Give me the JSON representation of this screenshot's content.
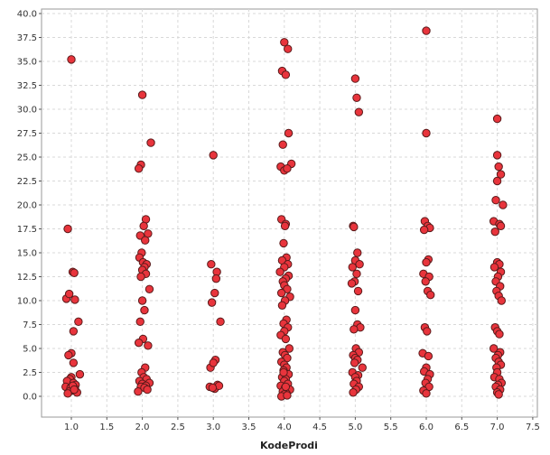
{
  "chart_data": {
    "type": "scatter",
    "xlabel": "KodeProdi",
    "ylabel": "",
    "xlim": [
      0.6,
      7.5
    ],
    "ylim": [
      -2.0,
      40.0
    ],
    "x_ticks": [
      1.0,
      1.5,
      2.0,
      2.5,
      3.0,
      3.5,
      4.0,
      4.5,
      5.0,
      5.5,
      6.0,
      6.5,
      7.0,
      7.5
    ],
    "y_ticks": [
      0.0,
      2.5,
      5.0,
      7.5,
      10.0,
      12.5,
      15.0,
      17.5,
      20.0,
      22.5,
      25.0,
      27.5,
      30.0,
      32.5,
      35.0,
      37.5,
      40.0
    ],
    "grid": true,
    "marker_color": "#e8343c",
    "marker_edge": "#5a1a1a",
    "series": [
      {
        "x": [
          1.0,
          0.95,
          1.02,
          1.04,
          0.93,
          0.97,
          1.05,
          1.1,
          1.03,
          1.0,
          0.96,
          1.12,
          1.0,
          0.98,
          0.94,
          1.03,
          1.06,
          0.92,
          0.99,
          1.05,
          1.01,
          0.97,
          1.08,
          1.03,
          0.95,
          1.02,
          1.04
        ],
        "y": [
          35.2,
          17.5,
          13.0,
          12.9,
          10.2,
          10.7,
          10.1,
          7.8,
          6.8,
          4.5,
          4.3,
          2.3,
          2.0,
          1.8,
          1.6,
          1.4,
          1.2,
          1.0,
          0.9,
          0.8,
          0.6,
          0.5,
          0.4,
          3.5,
          0.3,
          1.1,
          0.7
        ]
      },
      {
        "x": [
          2.12,
          2.0,
          1.98,
          1.95,
          2.05,
          2.02,
          2.08,
          1.97,
          2.04,
          1.99,
          1.96,
          2.01,
          2.06,
          2.03,
          2.0,
          2.05,
          1.98,
          2.1,
          2.0,
          2.03,
          1.97,
          2.01,
          1.95,
          2.08,
          2.04,
          1.99,
          2.02,
          2.06,
          1.96,
          2.1,
          2.0,
          2.05,
          1.98,
          2.03,
          2.07,
          1.94
        ],
        "y": [
          26.5,
          31.5,
          24.2,
          23.8,
          18.5,
          17.8,
          17.0,
          16.8,
          16.3,
          15.0,
          14.5,
          14.0,
          13.8,
          13.5,
          13.2,
          12.8,
          12.5,
          11.2,
          10.0,
          9.0,
          7.8,
          6.0,
          5.6,
          5.3,
          3.0,
          2.5,
          2.0,
          1.8,
          1.6,
          1.4,
          1.3,
          1.1,
          1.0,
          0.9,
          0.7,
          0.5
        ]
      },
      {
        "x": [
          3.0,
          2.97,
          3.05,
          3.04,
          3.02,
          2.98,
          3.1,
          2.96,
          3.03,
          3.0,
          2.95,
          3.06,
          3.02,
          3.08,
          2.99
        ],
        "y": [
          25.2,
          13.8,
          13.0,
          12.3,
          10.8,
          9.8,
          7.8,
          3.0,
          3.8,
          3.5,
          1.0,
          1.2,
          0.8,
          1.1,
          0.9
        ]
      },
      {
        "x": [
          4.0,
          4.05,
          3.97,
          4.02,
          4.1,
          3.95,
          4.0,
          4.04,
          3.98,
          4.06,
          3.96,
          4.02,
          4.01,
          3.99,
          4.03,
          3.97,
          4.05,
          4.0,
          3.94,
          4.06,
          4.02,
          3.98,
          4.0,
          4.04,
          3.96,
          4.08,
          4.01,
          3.97,
          4.03,
          3.99,
          4.05,
          4.0,
          3.95,
          4.02,
          4.07,
          3.98,
          4.01,
          4.04,
          3.96,
          4.0,
          4.03,
          3.99,
          4.06,
          3.97,
          4.02,
          4.0,
          4.05,
          3.95,
          4.01,
          4.08,
          3.98,
          4.03,
          4.0,
          3.96,
          4.04,
          4.02,
          3.99
        ],
        "y": [
          37.0,
          36.3,
          34.0,
          33.6,
          24.3,
          24.0,
          23.6,
          23.8,
          26.3,
          27.5,
          18.5,
          18.0,
          17.8,
          16.0,
          14.5,
          14.2,
          13.8,
          13.5,
          13.0,
          12.6,
          12.3,
          12.0,
          11.6,
          11.2,
          10.8,
          10.4,
          10.0,
          9.5,
          8.0,
          7.6,
          7.2,
          6.8,
          6.4,
          6.0,
          5.0,
          4.6,
          4.3,
          4.0,
          3.6,
          3.3,
          3.0,
          2.7,
          2.3,
          2.0,
          1.8,
          1.6,
          1.3,
          1.1,
          0.9,
          0.7,
          0.5,
          0.3,
          0.2,
          0.0,
          0.1,
          1.0,
          2.5
        ]
      },
      {
        "x": [
          5.0,
          5.02,
          5.05,
          4.97,
          4.98,
          5.03,
          5.0,
          4.96,
          5.06,
          5.02,
          4.99,
          5.04,
          4.95,
          5.0,
          5.03,
          5.07,
          4.98,
          5.01,
          5.05,
          4.97,
          5.0,
          5.03,
          4.99,
          5.1,
          4.96,
          5.04,
          5.0,
          5.02,
          4.98,
          5.05,
          5.01,
          4.97
        ],
        "y": [
          33.2,
          31.2,
          29.7,
          17.8,
          17.7,
          15.0,
          14.2,
          13.5,
          13.8,
          12.8,
          12.0,
          11.0,
          11.8,
          9.0,
          7.5,
          7.2,
          7.0,
          5.0,
          4.6,
          4.3,
          4.0,
          3.8,
          3.5,
          3.0,
          2.5,
          2.2,
          2.0,
          1.6,
          1.3,
          1.0,
          0.7,
          0.4
        ]
      },
      {
        "x": [
          6.0,
          6.0,
          5.98,
          6.02,
          6.05,
          5.97,
          6.03,
          6.0,
          5.96,
          6.04,
          5.99,
          6.02,
          6.06,
          5.98,
          6.01,
          5.95,
          6.03,
          6.0,
          5.97,
          6.05,
          6.02,
          5.99,
          6.04,
          5.96,
          6.0
        ],
        "y": [
          38.2,
          27.5,
          18.3,
          17.8,
          17.6,
          17.4,
          14.3,
          14.0,
          12.8,
          12.5,
          12.0,
          11.0,
          10.6,
          7.2,
          6.8,
          4.5,
          4.2,
          3.0,
          2.6,
          2.3,
          1.8,
          1.4,
          1.0,
          0.6,
          0.3
        ]
      },
      {
        "x": [
          7.0,
          7.0,
          7.02,
          7.05,
          7.0,
          6.98,
          7.08,
          6.95,
          7.03,
          7.05,
          6.97,
          7.0,
          7.03,
          6.96,
          7.05,
          7.01,
          6.98,
          7.04,
          6.99,
          7.02,
          7.06,
          6.97,
          7.0,
          7.03,
          6.95,
          7.04,
          7.01,
          6.98,
          7.02,
          7.05,
          6.99,
          7.0,
          6.96,
          7.03,
          7.06,
          7.01,
          6.98,
          7.04,
          7.0,
          7.02
        ],
        "y": [
          29.0,
          25.2,
          24.0,
          23.2,
          22.5,
          20.5,
          20.0,
          18.3,
          18.0,
          17.8,
          17.2,
          14.0,
          13.8,
          13.5,
          13.0,
          12.5,
          12.0,
          11.5,
          11.0,
          10.5,
          10.0,
          7.2,
          6.8,
          6.5,
          5.0,
          4.6,
          4.3,
          4.0,
          3.6,
          3.3,
          3.0,
          2.5,
          2.0,
          1.8,
          1.4,
          1.2,
          1.0,
          0.7,
          0.4,
          0.2
        ]
      }
    ]
  }
}
